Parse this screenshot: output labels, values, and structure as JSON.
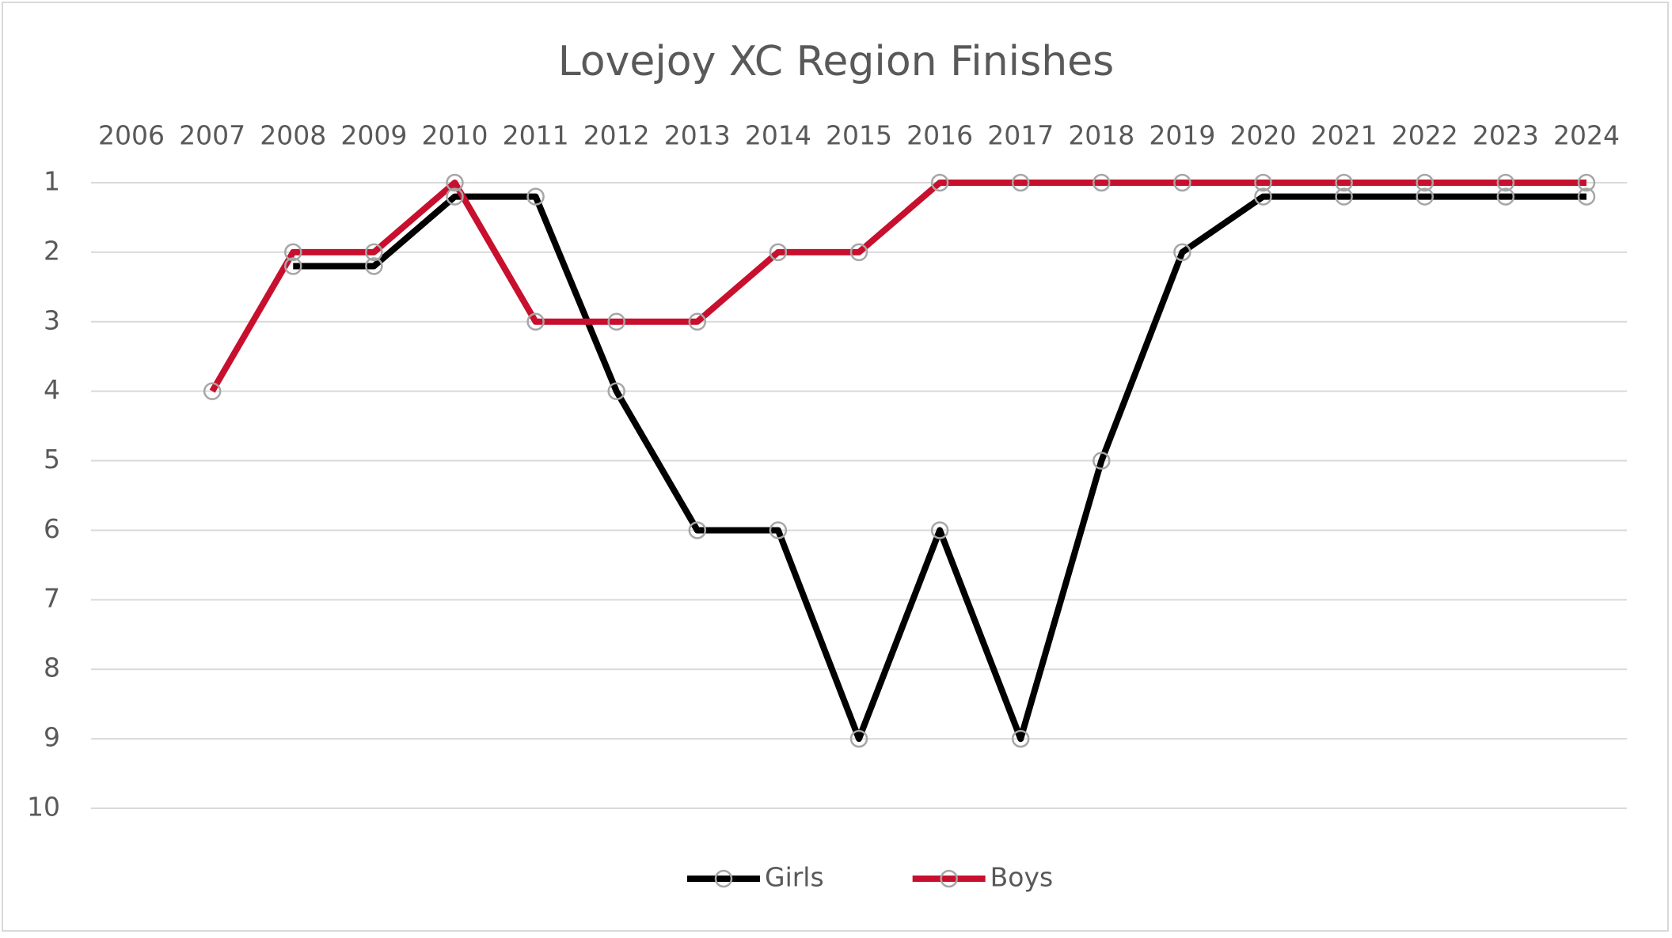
{
  "chart_data": {
    "type": "line",
    "title": "Lovejoy XC Region Finishes",
    "categories": [
      "2006",
      "2007",
      "2008",
      "2009",
      "2010",
      "2011",
      "2012",
      "2013",
      "2014",
      "2015",
      "2016",
      "2017",
      "2018",
      "2019",
      "2020",
      "2021",
      "2022",
      "2023",
      "2024"
    ],
    "series": [
      {
        "name": "Girls",
        "color": "#000000",
        "values": [
          null,
          null,
          2.2,
          2.2,
          1.2,
          1.2,
          4,
          6,
          6,
          9,
          6,
          9,
          5,
          2,
          1.2,
          1.2,
          1.2,
          1.2,
          1.2
        ]
      },
      {
        "name": "Boys",
        "color": "#c8102e",
        "values": [
          null,
          4,
          2,
          2,
          1,
          3,
          3,
          3,
          2,
          2,
          1,
          1,
          1,
          1,
          1,
          1,
          1,
          1,
          1
        ]
      }
    ],
    "ylim": [
      1,
      10
    ],
    "yticks": [
      1,
      2,
      3,
      4,
      5,
      6,
      7,
      8,
      9,
      10
    ],
    "yreverse": true,
    "x_axis_position": "top",
    "grid": true,
    "legend": "bottom"
  }
}
